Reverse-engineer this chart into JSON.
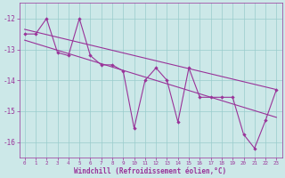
{
  "xlabel": "Windchill (Refroidissement éolien,°C)",
  "background_color": "#cce8e8",
  "grid_color": "#99cccc",
  "line_color": "#993399",
  "ylim": [
    -16.5,
    -11.5
  ],
  "xlim": [
    -0.5,
    23.5
  ],
  "yticks": [
    -16,
    -15,
    -14,
    -13,
    -12
  ],
  "xticks": [
    0,
    1,
    2,
    3,
    4,
    5,
    6,
    7,
    8,
    9,
    10,
    11,
    12,
    13,
    14,
    15,
    16,
    17,
    18,
    19,
    20,
    21,
    22,
    23
  ],
  "data_x": [
    0,
    1,
    2,
    3,
    4,
    5,
    6,
    7,
    8,
    9,
    10,
    11,
    12,
    13,
    14,
    15,
    16,
    17,
    18,
    19,
    20,
    21,
    22,
    23
  ],
  "data_y": [
    -12.5,
    -12.5,
    -12.0,
    -13.1,
    -13.2,
    -12.0,
    -13.2,
    -13.5,
    -13.5,
    -13.7,
    -15.55,
    -14.0,
    -13.6,
    -14.0,
    -15.35,
    -13.6,
    -14.55,
    -14.55,
    -14.55,
    -14.55,
    -15.75,
    -16.2,
    -15.3,
    -14.3
  ],
  "trend1_x": [
    0,
    23
  ],
  "trend1_y": [
    -12.35,
    -14.3
  ],
  "trend2_x": [
    0,
    23
  ],
  "trend2_y": [
    -12.7,
    -15.2
  ]
}
